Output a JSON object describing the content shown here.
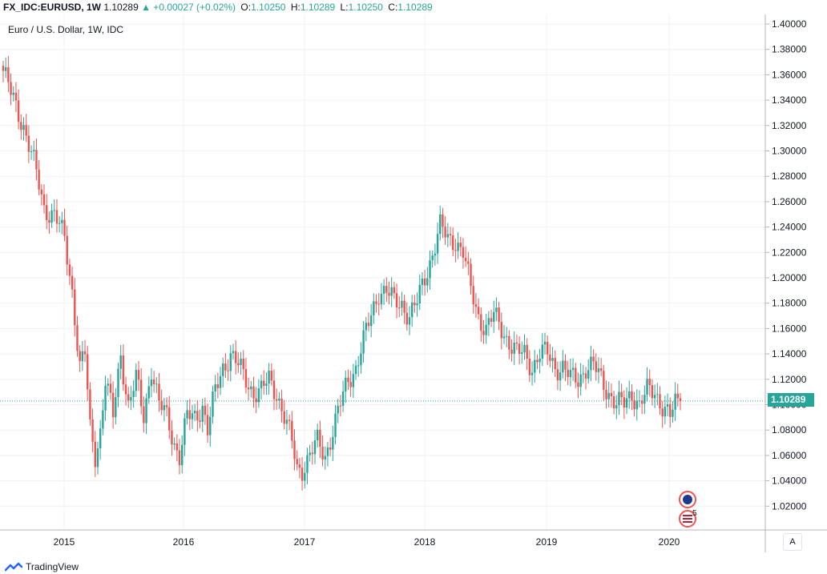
{
  "header": {
    "symbol": "FX_IDC:EURUSD, 1W",
    "last": "1.10289",
    "change": "▲ +0.00027 (+0.02%)",
    "o_label": "O:",
    "o_val": "1.10250",
    "h_label": "H:",
    "h_val": "1.10289",
    "l_label": "L:",
    "l_val": "1.10250",
    "c_label": "C:",
    "c_val": "1.10289"
  },
  "subtitle": "Euro / U.S. Dollar, 1W, IDC",
  "current_price_label": "1.10289",
  "auto_button": "A",
  "brand": "TradingView",
  "events": {
    "count_label": "5"
  },
  "colors": {
    "up": "#26a69a",
    "down": "#ef5350",
    "grid": "#eef0f4",
    "axis": "#b2b5be"
  },
  "chart_data": {
    "type": "candlestick",
    "title": "Euro / U.S. Dollar, 1W, IDC",
    "x_axis_ticks": [
      "2015",
      "2016",
      "2017",
      "2018",
      "2019",
      "2020"
    ],
    "y_axis_ticks": [
      "1.40000",
      "1.38000",
      "1.36000",
      "1.34000",
      "1.32000",
      "1.30000",
      "1.28000",
      "1.26000",
      "1.24000",
      "1.22000",
      "1.20000",
      "1.18000",
      "1.16000",
      "1.14000",
      "1.12000",
      "1.10000",
      "1.08000",
      "1.06000",
      "1.04000",
      "1.02000"
    ],
    "ylim": [
      1.0,
      1.404
    ],
    "grid": true,
    "current_price": 1.10289,
    "keypoints_week_close": [
      [
        0,
        1.363
      ],
      [
        3,
        1.345
      ],
      [
        8,
        1.32
      ],
      [
        12,
        1.29
      ],
      [
        16,
        1.255
      ],
      [
        20,
        1.25
      ],
      [
        24,
        1.23
      ],
      [
        27,
        1.19
      ],
      [
        30,
        1.13
      ],
      [
        32,
        1.14
      ],
      [
        34,
        1.08
      ],
      [
        36,
        1.06
      ],
      [
        38,
        1.08
      ],
      [
        40,
        1.12
      ],
      [
        43,
        1.09
      ],
      [
        46,
        1.14
      ],
      [
        49,
        1.1
      ],
      [
        52,
        1.12
      ],
      [
        55,
        1.09
      ],
      [
        58,
        1.13
      ],
      [
        61,
        1.1
      ],
      [
        64,
        1.09
      ],
      [
        67,
        1.07
      ],
      [
        69,
        1.06
      ],
      [
        72,
        1.09
      ],
      [
        75,
        1.09
      ],
      [
        78,
        1.1
      ],
      [
        80,
        1.08
      ],
      [
        83,
        1.11
      ],
      [
        86,
        1.13
      ],
      [
        89,
        1.14
      ],
      [
        92,
        1.13
      ],
      [
        95,
        1.12
      ],
      [
        98,
        1.11
      ],
      [
        101,
        1.11
      ],
      [
        104,
        1.12
      ],
      [
        107,
        1.11
      ],
      [
        110,
        1.09
      ],
      [
        113,
        1.07
      ],
      [
        115,
        1.05
      ],
      [
        117,
        1.05
      ],
      [
        120,
        1.06
      ],
      [
        123,
        1.07
      ],
      [
        126,
        1.06
      ],
      [
        129,
        1.08
      ],
      [
        132,
        1.1
      ],
      [
        135,
        1.12
      ],
      [
        138,
        1.13
      ],
      [
        141,
        1.15
      ],
      [
        144,
        1.17
      ],
      [
        147,
        1.19
      ],
      [
        150,
        1.19
      ],
      [
        153,
        1.18
      ],
      [
        156,
        1.18
      ],
      [
        159,
        1.17
      ],
      [
        162,
        1.18
      ],
      [
        165,
        1.2
      ],
      [
        168,
        1.22
      ],
      [
        171,
        1.24
      ],
      [
        174,
        1.23
      ],
      [
        177,
        1.23
      ],
      [
        180,
        1.22
      ],
      [
        183,
        1.19
      ],
      [
        186,
        1.17
      ],
      [
        189,
        1.16
      ],
      [
        192,
        1.17
      ],
      [
        195,
        1.16
      ],
      [
        198,
        1.15
      ],
      [
        201,
        1.14
      ],
      [
        204,
        1.14
      ],
      [
        207,
        1.13
      ],
      [
        210,
        1.14
      ],
      [
        213,
        1.14
      ],
      [
        216,
        1.13
      ],
      [
        219,
        1.13
      ],
      [
        222,
        1.12
      ],
      [
        225,
        1.12
      ],
      [
        228,
        1.13
      ],
      [
        231,
        1.13
      ],
      [
        234,
        1.12
      ],
      [
        237,
        1.11
      ],
      [
        240,
        1.1
      ],
      [
        243,
        1.1
      ],
      [
        246,
        1.11
      ],
      [
        249,
        1.1
      ],
      [
        252,
        1.11
      ],
      [
        255,
        1.11
      ],
      [
        258,
        1.1
      ],
      [
        261,
        1.09
      ],
      [
        263,
        1.1
      ],
      [
        265,
        1.103
      ]
    ],
    "weeks": 266
  }
}
